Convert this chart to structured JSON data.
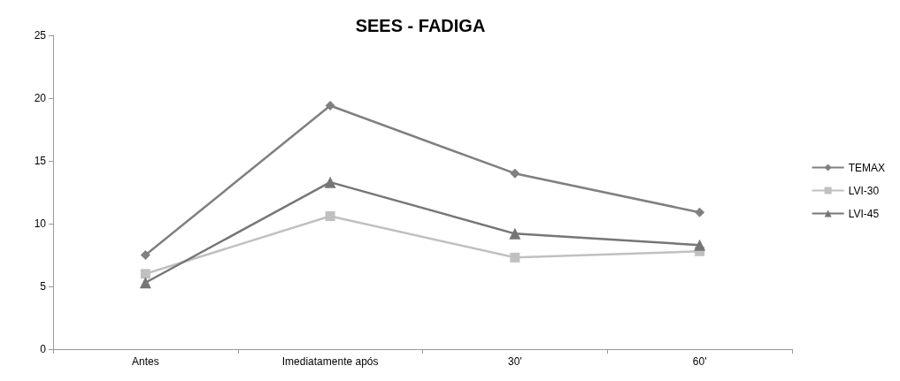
{
  "chart_data": {
    "type": "line",
    "title": "SEES - FADIGA",
    "categories": [
      "Antes",
      "Imediatamente após",
      "30'",
      "60'"
    ],
    "series": [
      {
        "name": "TEMAX",
        "color": "#808080",
        "marker": "diamond",
        "values": [
          7.5,
          19.4,
          14.0,
          10.9
        ]
      },
      {
        "name": "LVI-30",
        "color": "#c0c0c0",
        "marker": "square",
        "values": [
          6.0,
          10.6,
          7.3,
          7.8
        ]
      },
      {
        "name": "LVI-45",
        "color": "#767676",
        "marker": "triangle",
        "values": [
          5.3,
          13.3,
          9.2,
          8.3
        ]
      }
    ],
    "ylim": [
      0,
      25
    ],
    "yticks": [
      0,
      5,
      10,
      15,
      20,
      25
    ],
    "grid": false,
    "legend": "right",
    "line_style": "solid"
  }
}
